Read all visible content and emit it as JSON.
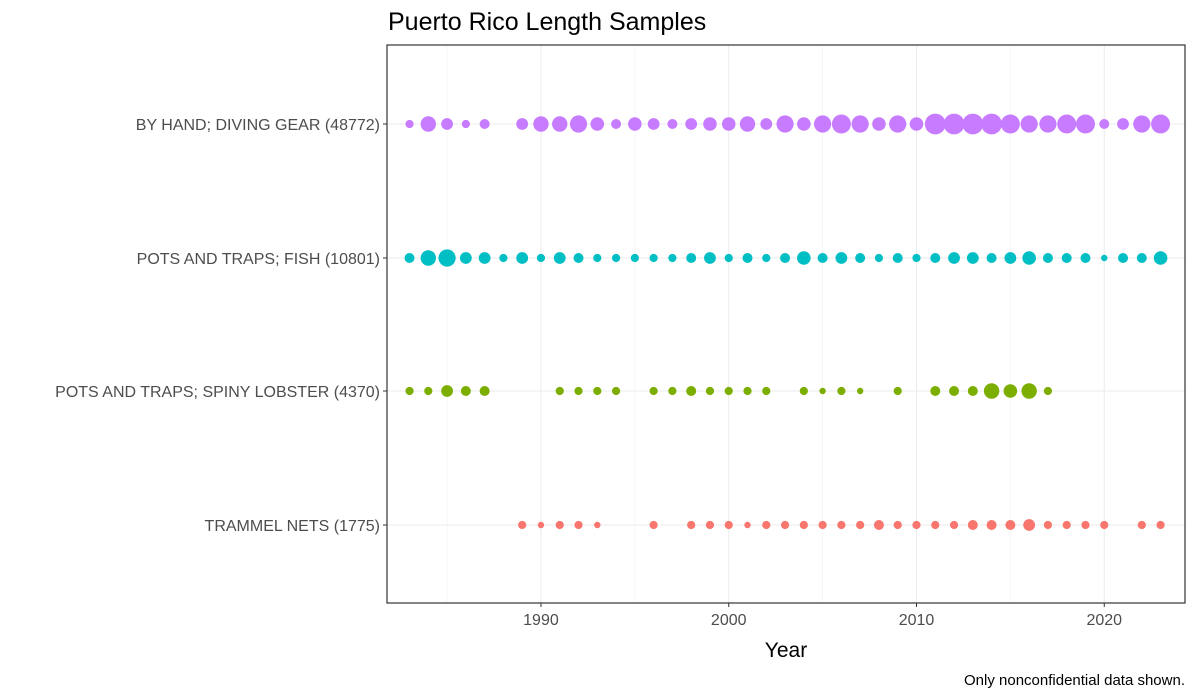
{
  "chart_data": {
    "type": "scatter",
    "title": "Puerto Rico Length Samples",
    "xlabel": "Year",
    "ylabel": "",
    "caption": "Only nonconfidential data shown.",
    "xlim": [
      1981.8,
      2024.3
    ],
    "xticks": [
      1990,
      2000,
      2010,
      2020
    ],
    "grid": true,
    "legend": "none",
    "categories": [
      "BY HAND; DIVING GEAR (48772)",
      "POTS AND TRAPS; FISH (10801)",
      "POTS AND TRAPS; SPINY LOBSTER (4370)",
      "TRAMMEL NETS (1775)"
    ],
    "size_unit": "relative",
    "series": [
      {
        "category": "BY HAND; DIVING GEAR (48772)",
        "color": "#c77cff",
        "points": [
          {
            "x": 1983,
            "s": 3
          },
          {
            "x": 1984,
            "s": 7
          },
          {
            "x": 1985,
            "s": 5
          },
          {
            "x": 1986,
            "s": 3
          },
          {
            "x": 1987,
            "s": 4
          },
          {
            "x": 1989,
            "s": 5
          },
          {
            "x": 1990,
            "s": 7
          },
          {
            "x": 1991,
            "s": 7
          },
          {
            "x": 1992,
            "s": 8
          },
          {
            "x": 1993,
            "s": 6
          },
          {
            "x": 1994,
            "s": 4
          },
          {
            "x": 1995,
            "s": 6
          },
          {
            "x": 1996,
            "s": 5
          },
          {
            "x": 1997,
            "s": 4
          },
          {
            "x": 1998,
            "s": 5
          },
          {
            "x": 1999,
            "s": 6
          },
          {
            "x": 2000,
            "s": 6
          },
          {
            "x": 2001,
            "s": 7
          },
          {
            "x": 2002,
            "s": 5
          },
          {
            "x": 2003,
            "s": 8
          },
          {
            "x": 2004,
            "s": 6
          },
          {
            "x": 2005,
            "s": 8
          },
          {
            "x": 2006,
            "s": 9
          },
          {
            "x": 2007,
            "s": 8
          },
          {
            "x": 2008,
            "s": 6
          },
          {
            "x": 2009,
            "s": 8
          },
          {
            "x": 2010,
            "s": 6
          },
          {
            "x": 2011,
            "s": 10
          },
          {
            "x": 2012,
            "s": 10
          },
          {
            "x": 2013,
            "s": 10
          },
          {
            "x": 2014,
            "s": 10
          },
          {
            "x": 2015,
            "s": 9
          },
          {
            "x": 2016,
            "s": 8
          },
          {
            "x": 2017,
            "s": 8
          },
          {
            "x": 2018,
            "s": 9
          },
          {
            "x": 2019,
            "s": 9
          },
          {
            "x": 2020,
            "s": 4
          },
          {
            "x": 2021,
            "s": 5
          },
          {
            "x": 2022,
            "s": 8
          },
          {
            "x": 2023,
            "s": 9
          }
        ]
      },
      {
        "category": "POTS AND TRAPS; FISH (10801)",
        "color": "#00bfc4",
        "points": [
          {
            "x": 1983,
            "s": 4
          },
          {
            "x": 1984,
            "s": 7
          },
          {
            "x": 1985,
            "s": 8
          },
          {
            "x": 1986,
            "s": 5
          },
          {
            "x": 1987,
            "s": 5
          },
          {
            "x": 1988,
            "s": 3
          },
          {
            "x": 1989,
            "s": 5
          },
          {
            "x": 1990,
            "s": 3
          },
          {
            "x": 1991,
            "s": 5
          },
          {
            "x": 1992,
            "s": 4
          },
          {
            "x": 1993,
            "s": 3
          },
          {
            "x": 1994,
            "s": 3
          },
          {
            "x": 1995,
            "s": 3
          },
          {
            "x": 1996,
            "s": 3
          },
          {
            "x": 1997,
            "s": 3
          },
          {
            "x": 1998,
            "s": 4
          },
          {
            "x": 1999,
            "s": 5
          },
          {
            "x": 2000,
            "s": 3
          },
          {
            "x": 2001,
            "s": 4
          },
          {
            "x": 2002,
            "s": 3
          },
          {
            "x": 2003,
            "s": 4
          },
          {
            "x": 2004,
            "s": 6
          },
          {
            "x": 2005,
            "s": 4
          },
          {
            "x": 2006,
            "s": 5
          },
          {
            "x": 2007,
            "s": 4
          },
          {
            "x": 2008,
            "s": 3
          },
          {
            "x": 2009,
            "s": 4
          },
          {
            "x": 2010,
            "s": 3
          },
          {
            "x": 2011,
            "s": 4
          },
          {
            "x": 2012,
            "s": 5
          },
          {
            "x": 2013,
            "s": 5
          },
          {
            "x": 2014,
            "s": 4
          },
          {
            "x": 2015,
            "s": 5
          },
          {
            "x": 2016,
            "s": 6
          },
          {
            "x": 2017,
            "s": 4
          },
          {
            "x": 2018,
            "s": 4
          },
          {
            "x": 2019,
            "s": 4
          },
          {
            "x": 2020,
            "s": 2
          },
          {
            "x": 2021,
            "s": 4
          },
          {
            "x": 2022,
            "s": 4
          },
          {
            "x": 2023,
            "s": 6
          }
        ]
      },
      {
        "category": "POTS AND TRAPS; SPINY LOBSTER (4370)",
        "color": "#7cae00",
        "points": [
          {
            "x": 1983,
            "s": 3
          },
          {
            "x": 1984,
            "s": 3
          },
          {
            "x": 1985,
            "s": 5
          },
          {
            "x": 1986,
            "s": 4
          },
          {
            "x": 1987,
            "s": 4
          },
          {
            "x": 1991,
            "s": 3
          },
          {
            "x": 1992,
            "s": 3
          },
          {
            "x": 1993,
            "s": 3
          },
          {
            "x": 1994,
            "s": 3
          },
          {
            "x": 1996,
            "s": 3
          },
          {
            "x": 1997,
            "s": 3
          },
          {
            "x": 1998,
            "s": 4
          },
          {
            "x": 1999,
            "s": 3
          },
          {
            "x": 2000,
            "s": 3
          },
          {
            "x": 2001,
            "s": 3
          },
          {
            "x": 2002,
            "s": 3
          },
          {
            "x": 2004,
            "s": 3
          },
          {
            "x": 2005,
            "s": 2
          },
          {
            "x": 2006,
            "s": 3
          },
          {
            "x": 2007,
            "s": 2
          },
          {
            "x": 2009,
            "s": 3
          },
          {
            "x": 2011,
            "s": 4
          },
          {
            "x": 2012,
            "s": 4
          },
          {
            "x": 2013,
            "s": 4
          },
          {
            "x": 2014,
            "s": 7
          },
          {
            "x": 2015,
            "s": 6
          },
          {
            "x": 2016,
            "s": 7
          },
          {
            "x": 2017,
            "s": 3
          }
        ]
      },
      {
        "category": "TRAMMEL NETS (1775)",
        "color": "#f8766d",
        "points": [
          {
            "x": 1989,
            "s": 3
          },
          {
            "x": 1990,
            "s": 2
          },
          {
            "x": 1991,
            "s": 3
          },
          {
            "x": 1992,
            "s": 3
          },
          {
            "x": 1993,
            "s": 2
          },
          {
            "x": 1996,
            "s": 3
          },
          {
            "x": 1998,
            "s": 3
          },
          {
            "x": 1999,
            "s": 3
          },
          {
            "x": 2000,
            "s": 3
          },
          {
            "x": 2001,
            "s": 2
          },
          {
            "x": 2002,
            "s": 3
          },
          {
            "x": 2003,
            "s": 3
          },
          {
            "x": 2004,
            "s": 3
          },
          {
            "x": 2005,
            "s": 3
          },
          {
            "x": 2006,
            "s": 3
          },
          {
            "x": 2007,
            "s": 3
          },
          {
            "x": 2008,
            "s": 4
          },
          {
            "x": 2009,
            "s": 3
          },
          {
            "x": 2010,
            "s": 3
          },
          {
            "x": 2011,
            "s": 3
          },
          {
            "x": 2012,
            "s": 3
          },
          {
            "x": 2013,
            "s": 4
          },
          {
            "x": 2014,
            "s": 4
          },
          {
            "x": 2015,
            "s": 4
          },
          {
            "x": 2016,
            "s": 5
          },
          {
            "x": 2017,
            "s": 3
          },
          {
            "x": 2018,
            "s": 3
          },
          {
            "x": 2019,
            "s": 3
          },
          {
            "x": 2020,
            "s": 3
          },
          {
            "x": 2022,
            "s": 3
          },
          {
            "x": 2023,
            "s": 3
          }
        ]
      }
    ]
  }
}
